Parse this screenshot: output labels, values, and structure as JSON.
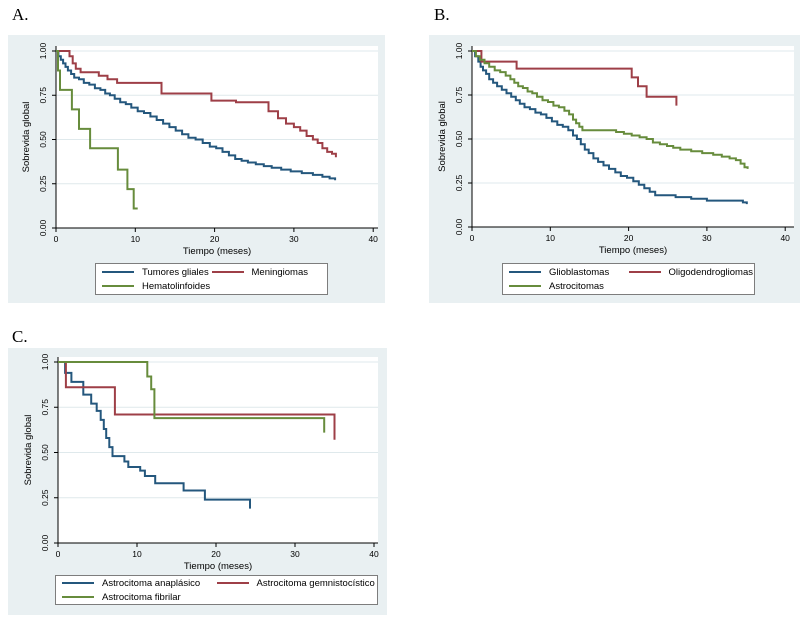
{
  "styles": {
    "figure_bg": "#e9f0f2",
    "plot_bg": "#ffffff",
    "grid_color": "#dfe9ec",
    "axis_color": "#000000",
    "legend_border": "#7d7d7d",
    "text_color": "#000000",
    "series_blue": "#24577d",
    "series_red": "#9e3f47",
    "series_green": "#678c3c"
  },
  "chart_data": [
    {
      "type": "line",
      "subtype": "kaplan-meier-step",
      "panel_label": "A.",
      "xlabel": "Tiempo (meses)",
      "ylabel": "Sobrevida global",
      "xlim": [
        0,
        40
      ],
      "ylim": [
        0,
        1
      ],
      "xticks": [
        {
          "v": 0,
          "label": "0"
        },
        {
          "v": 10,
          "label": "10"
        },
        {
          "v": 20,
          "label": "20"
        },
        {
          "v": 30,
          "label": "30"
        },
        {
          "v": 40,
          "label": "40"
        }
      ],
      "yticks": [
        {
          "v": 0,
          "label": "0.00"
        },
        {
          "v": 0.25,
          "label": "0.25"
        },
        {
          "v": 0.5,
          "label": "0.50"
        },
        {
          "v": 0.75,
          "label": "0.75"
        },
        {
          "v": 1,
          "label": "1.00"
        }
      ],
      "grid": true,
      "legend_position": "below",
      "series": [
        {
          "name": "Tumores gliales",
          "color": "#24577d",
          "points": [
            [
              0,
              1.0
            ],
            [
              0.3,
              0.97
            ],
            [
              0.6,
              0.95
            ],
            [
              0.9,
              0.93
            ],
            [
              1.2,
              0.91
            ],
            [
              1.5,
              0.89
            ],
            [
              1.9,
              0.87
            ],
            [
              2.3,
              0.85
            ],
            [
              2.9,
              0.84
            ],
            [
              3.5,
              0.82
            ],
            [
              4.2,
              0.81
            ],
            [
              4.9,
              0.79
            ],
            [
              5.6,
              0.78
            ],
            [
              6.2,
              0.76
            ],
            [
              6.8,
              0.75
            ],
            [
              7.4,
              0.73
            ],
            [
              8.1,
              0.71
            ],
            [
              8.8,
              0.7
            ],
            [
              9.5,
              0.68
            ],
            [
              10.3,
              0.66
            ],
            [
              11.1,
              0.65
            ],
            [
              11.9,
              0.63
            ],
            [
              12.7,
              0.61
            ],
            [
              13.5,
              0.59
            ],
            [
              14.3,
              0.57
            ],
            [
              15.1,
              0.55
            ],
            [
              15.9,
              0.53
            ],
            [
              16.7,
              0.51
            ],
            [
              17.6,
              0.5
            ],
            [
              18.5,
              0.48
            ],
            [
              19.4,
              0.46
            ],
            [
              20.2,
              0.45
            ],
            [
              21.0,
              0.43
            ],
            [
              21.8,
              0.41
            ],
            [
              22.6,
              0.39
            ],
            [
              23.4,
              0.38
            ],
            [
              24.2,
              0.37
            ],
            [
              25.2,
              0.36
            ],
            [
              26.2,
              0.35
            ],
            [
              27.2,
              0.34
            ],
            [
              28.4,
              0.33
            ],
            [
              29.6,
              0.32
            ],
            [
              31.0,
              0.31
            ],
            [
              32.4,
              0.3
            ],
            [
              33.6,
              0.29
            ],
            [
              34.5,
              0.28
            ],
            [
              35.2,
              0.27
            ]
          ]
        },
        {
          "name": "Meningiomas",
          "color": "#9e3f47",
          "points": [
            [
              0,
              1.0
            ],
            [
              1.7,
              0.97
            ],
            [
              2.1,
              0.93
            ],
            [
              2.5,
              0.9
            ],
            [
              3.1,
              0.88
            ],
            [
              5.4,
              0.86
            ],
            [
              6.5,
              0.84
            ],
            [
              7.7,
              0.82
            ],
            [
              13.3,
              0.76
            ],
            [
              19.6,
              0.72
            ],
            [
              22.7,
              0.71
            ],
            [
              26.8,
              0.66
            ],
            [
              28.0,
              0.62
            ],
            [
              29.0,
              0.59
            ],
            [
              30.0,
              0.57
            ],
            [
              30.8,
              0.55
            ],
            [
              31.6,
              0.52
            ],
            [
              32.4,
              0.5
            ],
            [
              33.0,
              0.48
            ],
            [
              33.6,
              0.45
            ],
            [
              34.2,
              0.43
            ],
            [
              34.8,
              0.42
            ],
            [
              35.3,
              0.4
            ]
          ]
        },
        {
          "name": "Hematolinfoides",
          "color": "#678c3c",
          "points": [
            [
              0,
              1.0
            ],
            [
              0.25,
              0.89
            ],
            [
              0.5,
              0.78
            ],
            [
              2.0,
              0.67
            ],
            [
              2.9,
              0.56
            ],
            [
              4.3,
              0.45
            ],
            [
              7.8,
              0.33
            ],
            [
              9.0,
              0.22
            ],
            [
              9.8,
              0.11
            ],
            [
              10.3,
              0.11
            ]
          ]
        }
      ]
    },
    {
      "type": "line",
      "subtype": "kaplan-meier-step",
      "panel_label": "B.",
      "xlabel": "Tiempo (meses)",
      "ylabel": "Sobrevida global",
      "xlim": [
        0,
        40
      ],
      "ylim": [
        0,
        1
      ],
      "xticks": [
        {
          "v": 0,
          "label": "0"
        },
        {
          "v": 10,
          "label": "10"
        },
        {
          "v": 20,
          "label": "20"
        },
        {
          "v": 30,
          "label": "30"
        },
        {
          "v": 40,
          "label": "40"
        }
      ],
      "yticks": [
        {
          "v": 0,
          "label": "0.00"
        },
        {
          "v": 0.25,
          "label": "0.25"
        },
        {
          "v": 0.5,
          "label": "0.50"
        },
        {
          "v": 0.75,
          "label": "0.75"
        },
        {
          "v": 1,
          "label": "1.00"
        }
      ],
      "grid": true,
      "legend_position": "below",
      "series": [
        {
          "name": "Glioblastomas",
          "color": "#24577d",
          "points": [
            [
              0,
              1.0
            ],
            [
              0.4,
              0.97
            ],
            [
              0.8,
              0.94
            ],
            [
              1.1,
              0.91
            ],
            [
              1.4,
              0.89
            ],
            [
              1.8,
              0.87
            ],
            [
              2.2,
              0.84
            ],
            [
              2.7,
              0.82
            ],
            [
              3.2,
              0.8
            ],
            [
              3.8,
              0.78
            ],
            [
              4.4,
              0.76
            ],
            [
              5.0,
              0.74
            ],
            [
              5.6,
              0.72
            ],
            [
              6.1,
              0.7
            ],
            [
              6.7,
              0.68
            ],
            [
              7.4,
              0.67
            ],
            [
              8.1,
              0.65
            ],
            [
              8.8,
              0.64
            ],
            [
              9.5,
              0.62
            ],
            [
              10.2,
              0.6
            ],
            [
              10.9,
              0.58
            ],
            [
              11.6,
              0.57
            ],
            [
              12.3,
              0.55
            ],
            [
              12.9,
              0.52
            ],
            [
              13.4,
              0.5
            ],
            [
              13.9,
              0.47
            ],
            [
              14.4,
              0.44
            ],
            [
              14.9,
              0.42
            ],
            [
              15.5,
              0.39
            ],
            [
              16.1,
              0.37
            ],
            [
              16.8,
              0.35
            ],
            [
              17.5,
              0.33
            ],
            [
              18.3,
              0.31
            ],
            [
              19.0,
              0.29
            ],
            [
              19.8,
              0.28
            ],
            [
              20.6,
              0.26
            ],
            [
              21.3,
              0.24
            ],
            [
              22.0,
              0.22
            ],
            [
              22.7,
              0.2
            ],
            [
              23.4,
              0.18
            ],
            [
              26.0,
              0.17
            ],
            [
              28.0,
              0.16
            ],
            [
              30.0,
              0.15
            ],
            [
              34.6,
              0.14
            ],
            [
              35.1,
              0.13
            ]
          ]
        },
        {
          "name": "Oligodendrogliomas",
          "color": "#9e3f47",
          "points": [
            [
              0,
              1.0
            ],
            [
              1.2,
              0.94
            ],
            [
              5.7,
              0.9
            ],
            [
              20.4,
              0.85
            ],
            [
              21.2,
              0.8
            ],
            [
              22.3,
              0.74
            ],
            [
              26.1,
              0.69
            ]
          ]
        },
        {
          "name": "Astrocitomas",
          "color": "#678c3c",
          "points": [
            [
              0,
              1.0
            ],
            [
              0.5,
              0.97
            ],
            [
              1.0,
              0.95
            ],
            [
              1.6,
              0.93
            ],
            [
              2.2,
              0.91
            ],
            [
              2.9,
              0.89
            ],
            [
              3.6,
              0.88
            ],
            [
              4.3,
              0.86
            ],
            [
              4.9,
              0.84
            ],
            [
              5.4,
              0.82
            ],
            [
              5.9,
              0.8
            ],
            [
              6.5,
              0.79
            ],
            [
              7.1,
              0.77
            ],
            [
              7.7,
              0.76
            ],
            [
              8.3,
              0.74
            ],
            [
              9.0,
              0.72
            ],
            [
              9.7,
              0.71
            ],
            [
              10.4,
              0.69
            ],
            [
              11.1,
              0.68
            ],
            [
              11.8,
              0.66
            ],
            [
              12.4,
              0.64
            ],
            [
              12.9,
              0.61
            ],
            [
              13.3,
              0.59
            ],
            [
              13.7,
              0.57
            ],
            [
              14.1,
              0.55
            ],
            [
              18.4,
              0.54
            ],
            [
              19.4,
              0.53
            ],
            [
              20.4,
              0.52
            ],
            [
              21.4,
              0.51
            ],
            [
              22.3,
              0.5
            ],
            [
              23.1,
              0.48
            ],
            [
              24.0,
              0.47
            ],
            [
              24.9,
              0.46
            ],
            [
              25.7,
              0.45
            ],
            [
              26.6,
              0.44
            ],
            [
              28.0,
              0.43
            ],
            [
              29.4,
              0.42
            ],
            [
              30.8,
              0.41
            ],
            [
              31.9,
              0.4
            ],
            [
              32.9,
              0.39
            ],
            [
              33.7,
              0.38
            ],
            [
              34.3,
              0.36
            ],
            [
              34.8,
              0.34
            ],
            [
              35.2,
              0.33
            ]
          ]
        }
      ]
    },
    {
      "type": "line",
      "subtype": "kaplan-meier-step",
      "panel_label": "C.",
      "xlabel": "Tiempo (meses)",
      "ylabel": "Sobrevida global",
      "xlim": [
        0,
        40
      ],
      "ylim": [
        0,
        1
      ],
      "xticks": [
        {
          "v": 0,
          "label": "0"
        },
        {
          "v": 10,
          "label": "10"
        },
        {
          "v": 20,
          "label": "20"
        },
        {
          "v": 30,
          "label": "30"
        },
        {
          "v": 40,
          "label": "40"
        }
      ],
      "yticks": [
        {
          "v": 0,
          "label": "0.00"
        },
        {
          "v": 0.25,
          "label": "0.25"
        },
        {
          "v": 0.5,
          "label": "0.50"
        },
        {
          "v": 0.75,
          "label": "0.75"
        },
        {
          "v": 1,
          "label": "1.00"
        }
      ],
      "grid": true,
      "legend_position": "below",
      "series": [
        {
          "name": "Astrocitoma anaplásico",
          "color": "#24577d",
          "points": [
            [
              0,
              1.0
            ],
            [
              0.9,
              0.94
            ],
            [
              1.7,
              0.89
            ],
            [
              3.2,
              0.82
            ],
            [
              4.2,
              0.77
            ],
            [
              4.9,
              0.73
            ],
            [
              5.4,
              0.68
            ],
            [
              5.8,
              0.63
            ],
            [
              6.1,
              0.58
            ],
            [
              6.5,
              0.53
            ],
            [
              6.9,
              0.48
            ],
            [
              8.4,
              0.45
            ],
            [
              8.9,
              0.42
            ],
            [
              10.4,
              0.4
            ],
            [
              11.0,
              0.37
            ],
            [
              12.3,
              0.33
            ],
            [
              15.9,
              0.29
            ],
            [
              18.6,
              0.24
            ],
            [
              24.3,
              0.19
            ]
          ]
        },
        {
          "name": "Astrocitoma gemnistocístico",
          "color": "#9e3f47",
          "points": [
            [
              0,
              1.0
            ],
            [
              1.0,
              0.86
            ],
            [
              7.2,
              0.71
            ],
            [
              35.0,
              0.57
            ]
          ]
        },
        {
          "name": "Astrocitoma fibrilar",
          "color": "#678c3c",
          "points": [
            [
              0,
              1.0
            ],
            [
              11.3,
              0.92
            ],
            [
              11.8,
              0.85
            ],
            [
              12.2,
              0.69
            ],
            [
              33.7,
              0.61
            ]
          ]
        }
      ]
    }
  ]
}
